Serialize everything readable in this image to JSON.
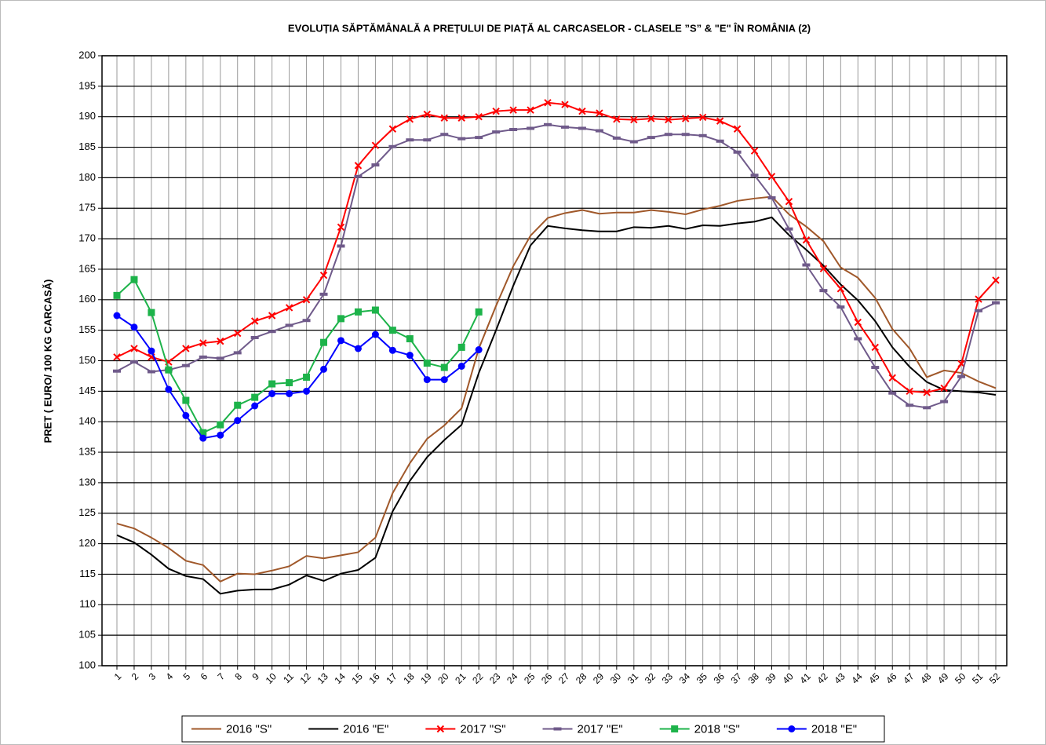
{
  "chart_data": {
    "type": "line",
    "title": "EVOLUȚIA SĂPTĂMÂNALĂ A PREȚULUI  DE PIAȚĂ  AL CARCASELOR  - CLASELE ”S” & \"E\"  ÎN ROMÂNIA (2)",
    "y_label": "PRET ( EURO/ 100 KG CARCASĂ)",
    "categories": [
      "1",
      "2",
      "3",
      "4",
      "5",
      "6",
      "7",
      "8",
      "9",
      "10",
      "11",
      "12",
      "13",
      "14",
      "15",
      "16",
      "17",
      "18",
      "19",
      "20",
      "21",
      "22",
      "23",
      "24",
      "25",
      "26",
      "27",
      "28",
      "29",
      "30",
      "31",
      "32",
      "33",
      "34",
      "35",
      "36",
      "37",
      "38",
      "39",
      "40",
      "41",
      "42",
      "43",
      "44",
      "45",
      "46",
      "47",
      "48",
      "49",
      "50",
      "51",
      "52"
    ],
    "ylim": [
      100,
      200
    ],
    "yticks": [
      100,
      105,
      110,
      115,
      120,
      125,
      130,
      135,
      140,
      145,
      150,
      155,
      160,
      165,
      170,
      175,
      180,
      185,
      190,
      195,
      200
    ],
    "grid": true,
    "legend": "bottom",
    "series": [
      {
        "name": "2016 \"S\"",
        "color": "#a0582a",
        "marker": "none",
        "values": [
          123.3,
          122.5,
          121,
          119.3,
          117.2,
          116.5,
          113.8,
          115.1,
          115,
          115.6,
          116.3,
          118,
          117.6,
          118.1,
          118.6,
          121,
          128.3,
          133.2,
          137.2,
          139.4,
          142.2,
          152,
          159,
          165.5,
          170.5,
          173.4,
          174.2,
          174.7,
          174.1,
          174.3,
          174.3,
          174.7,
          174.4,
          174,
          174.8,
          175.4,
          176.2,
          176.6,
          176.9,
          174,
          172,
          169.6,
          165.3,
          163.6,
          160.3,
          155.2,
          152,
          147.3,
          148.4,
          148,
          146.6,
          145.5
        ]
      },
      {
        "name": "2016 \"E\"",
        "color": "#000000",
        "marker": "none",
        "values": [
          121.4,
          120.2,
          118.2,
          115.9,
          114.7,
          114.2,
          111.8,
          112.3,
          112.5,
          112.5,
          113.3,
          114.8,
          113.9,
          115.1,
          115.7,
          117.7,
          125.3,
          130.3,
          134.2,
          137,
          139.5,
          148,
          155,
          162.3,
          168.9,
          172.1,
          171.7,
          171.4,
          171.2,
          171.2,
          171.9,
          171.8,
          172.1,
          171.6,
          172.2,
          172.1,
          172.5,
          172.8,
          173.5,
          170.6,
          168.2,
          165.6,
          162.5,
          159.9,
          156.5,
          152.2,
          149,
          146.5,
          145.2,
          145,
          144.8,
          144.4
        ]
      },
      {
        "name": "2017 \"S\"",
        "color": "#ff0000",
        "marker": "x",
        "values": [
          150.6,
          152,
          150.6,
          149.8,
          152,
          152.9,
          153.2,
          154.5,
          156.5,
          157.4,
          158.7,
          160,
          164,
          171.9,
          182,
          185.3,
          188,
          189.6,
          190.4,
          189.8,
          189.8,
          190,
          190.9,
          191.1,
          191.1,
          192.3,
          192,
          190.9,
          190.6,
          189.6,
          189.5,
          189.7,
          189.5,
          189.7,
          189.9,
          189.3,
          188,
          184.4,
          180.2,
          176.1,
          169.8,
          165.1,
          161.8,
          156.3,
          152.2,
          147.2,
          145,
          144.8,
          145.5,
          149.5,
          160.1,
          163.2
        ]
      },
      {
        "name": "2017 \"E\"",
        "color": "#6f5a8a",
        "marker": "dash",
        "values": [
          148.3,
          149.8,
          148.2,
          148.5,
          149.2,
          150.6,
          150.4,
          151.3,
          153.8,
          154.8,
          155.8,
          156.6,
          160.9,
          168.8,
          180.2,
          182.1,
          185.1,
          186.2,
          186.2,
          187.1,
          186.4,
          186.6,
          187.5,
          187.9,
          188.1,
          188.7,
          188.3,
          188.1,
          187.7,
          186.5,
          185.9,
          186.6,
          187.1,
          187.1,
          186.9,
          186,
          184.2,
          180.4,
          176.7,
          171.6,
          165.7,
          161.5,
          158.8,
          153.6,
          148.9,
          144.7,
          142.7,
          142.3,
          143.3,
          147.4,
          158.2,
          159.5
        ]
      },
      {
        "name": "2018 \"S\"",
        "color": "#1db34a",
        "marker": "square",
        "values": [
          160.7,
          163.3,
          157.9,
          148.5,
          143.5,
          138.2,
          139.5,
          142.7,
          144,
          146.2,
          146.4,
          147.3,
          153,
          156.9,
          158,
          158.3,
          155,
          153.6,
          149.6,
          148.9,
          152.2,
          158,
          null,
          null,
          null,
          null,
          null,
          null,
          null,
          null,
          null,
          null,
          null,
          null,
          null,
          null,
          null,
          null,
          null,
          null,
          null,
          null,
          null,
          null,
          null,
          null,
          null,
          null,
          null,
          null,
          null,
          null
        ]
      },
      {
        "name": "2018 \"E\"",
        "color": "#0000ff",
        "marker": "circle",
        "values": [
          157.4,
          155.5,
          151.6,
          145.3,
          141,
          137.3,
          137.8,
          140.2,
          142.6,
          144.6,
          144.6,
          145,
          148.6,
          153.3,
          152,
          154.3,
          151.7,
          150.9,
          146.9,
          146.9,
          149.1,
          151.8,
          null,
          null,
          null,
          null,
          null,
          null,
          null,
          null,
          null,
          null,
          null,
          null,
          null,
          null,
          null,
          null,
          null,
          null,
          null,
          null,
          null,
          null,
          null,
          null,
          null,
          null,
          null,
          null,
          null,
          null
        ]
      }
    ]
  }
}
